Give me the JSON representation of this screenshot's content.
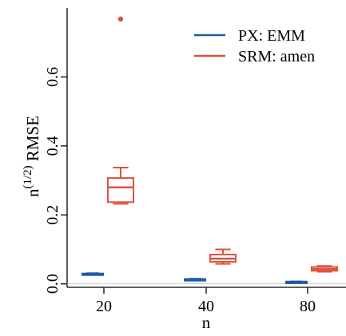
{
  "chart_data": {
    "type": "boxplot",
    "title": "",
    "xlabel": "n",
    "ylabel": {
      "prefix": "n",
      "superscript": "(1/2)",
      "suffix": " RMSE"
    },
    "categories": [
      "20",
      "40",
      "80"
    ],
    "ylim": [
      -0.01,
      0.8
    ],
    "y_ticks": [
      0.0,
      0.2,
      0.4,
      0.6
    ],
    "y_tick_labels": [
      "0.0",
      "0.2",
      "0.4",
      "0.6"
    ],
    "reference_line_y": 0,
    "legend": {
      "position": "top-right",
      "entries": [
        {
          "label": "PX: EMM",
          "color": "#1f5aa6"
        },
        {
          "label": "SRM: amen",
          "color": "#e0523c"
        }
      ]
    },
    "series": [
      {
        "name": "PX: EMM",
        "color": "#1f5aa6",
        "boxes": [
          {
            "category": "20",
            "min": 0.026,
            "q1": 0.027,
            "median": 0.028,
            "q3": 0.03,
            "max": 0.031,
            "outliers": []
          },
          {
            "category": "40",
            "min": 0.011,
            "q1": 0.012,
            "median": 0.013,
            "q3": 0.014,
            "max": 0.015,
            "outliers": []
          },
          {
            "category": "80",
            "min": 0.005,
            "q1": 0.0055,
            "median": 0.006,
            "q3": 0.0065,
            "max": 0.007,
            "outliers": []
          }
        ]
      },
      {
        "name": "SRM: amen",
        "color": "#e0523c",
        "boxes": [
          {
            "category": "20",
            "min": 0.232,
            "q1": 0.237,
            "median": 0.28,
            "q3": 0.307,
            "max": 0.337,
            "outliers": [
              0.768
            ]
          },
          {
            "category": "40",
            "min": 0.058,
            "q1": 0.064,
            "median": 0.073,
            "q3": 0.085,
            "max": 0.1,
            "outliers": []
          },
          {
            "category": "80",
            "min": 0.035,
            "q1": 0.038,
            "median": 0.043,
            "q3": 0.049,
            "max": 0.052,
            "outliers": []
          }
        ]
      }
    ]
  }
}
